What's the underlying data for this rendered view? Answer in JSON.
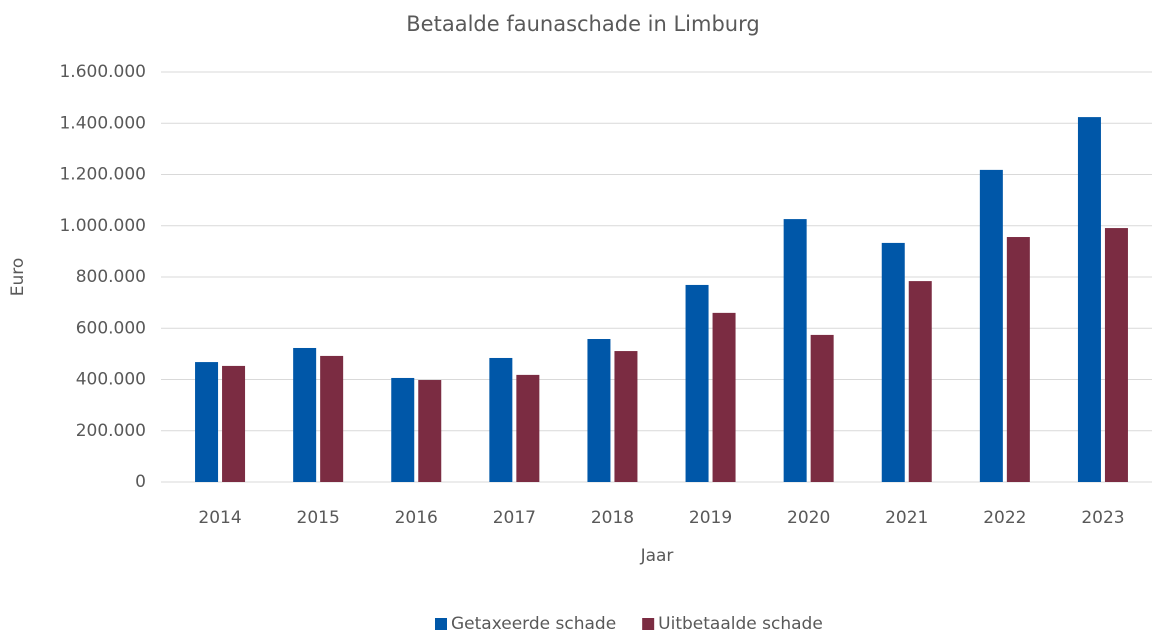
{
  "chart_data": {
    "type": "bar",
    "title": "Betaalde faunaschade in Limburg",
    "x_label": "Jaar",
    "y_label": "Euro",
    "categories": [
      "2014",
      "2015",
      "2016",
      "2017",
      "2018",
      "2019",
      "2020",
      "2021",
      "2022",
      "2023"
    ],
    "series": [
      {
        "name": "Getaxeerde schade",
        "color": "#0057a8",
        "values": [
          468000,
          523000,
          406000,
          484000,
          558000,
          769000,
          1026000,
          933000,
          1218000,
          1424000
        ]
      },
      {
        "name": "Uitbetaalde schade",
        "color": "#7b2c42",
        "values": [
          453000,
          492000,
          398000,
          418000,
          511000,
          660000,
          574000,
          784000,
          956000,
          991000
        ]
      }
    ],
    "ylim": [
      0,
      1600000
    ],
    "yticks": [
      0,
      {
        "value": 200000,
        "label": "200.000"
      },
      {
        "value": 400000,
        "label": "400.000"
      },
      {
        "value": 600000,
        "label": "600.000"
      },
      {
        "value": 800000,
        "label": "800.000"
      },
      {
        "value": 1000000,
        "label": "1.000.000"
      },
      {
        "value": 1200000,
        "label": "1.200.000"
      },
      {
        "value": 1400000,
        "label": "1.400.000"
      },
      {
        "value": 1600000,
        "label": "1.600.000"
      }
    ],
    "grid": true,
    "legend": "bottom"
  }
}
